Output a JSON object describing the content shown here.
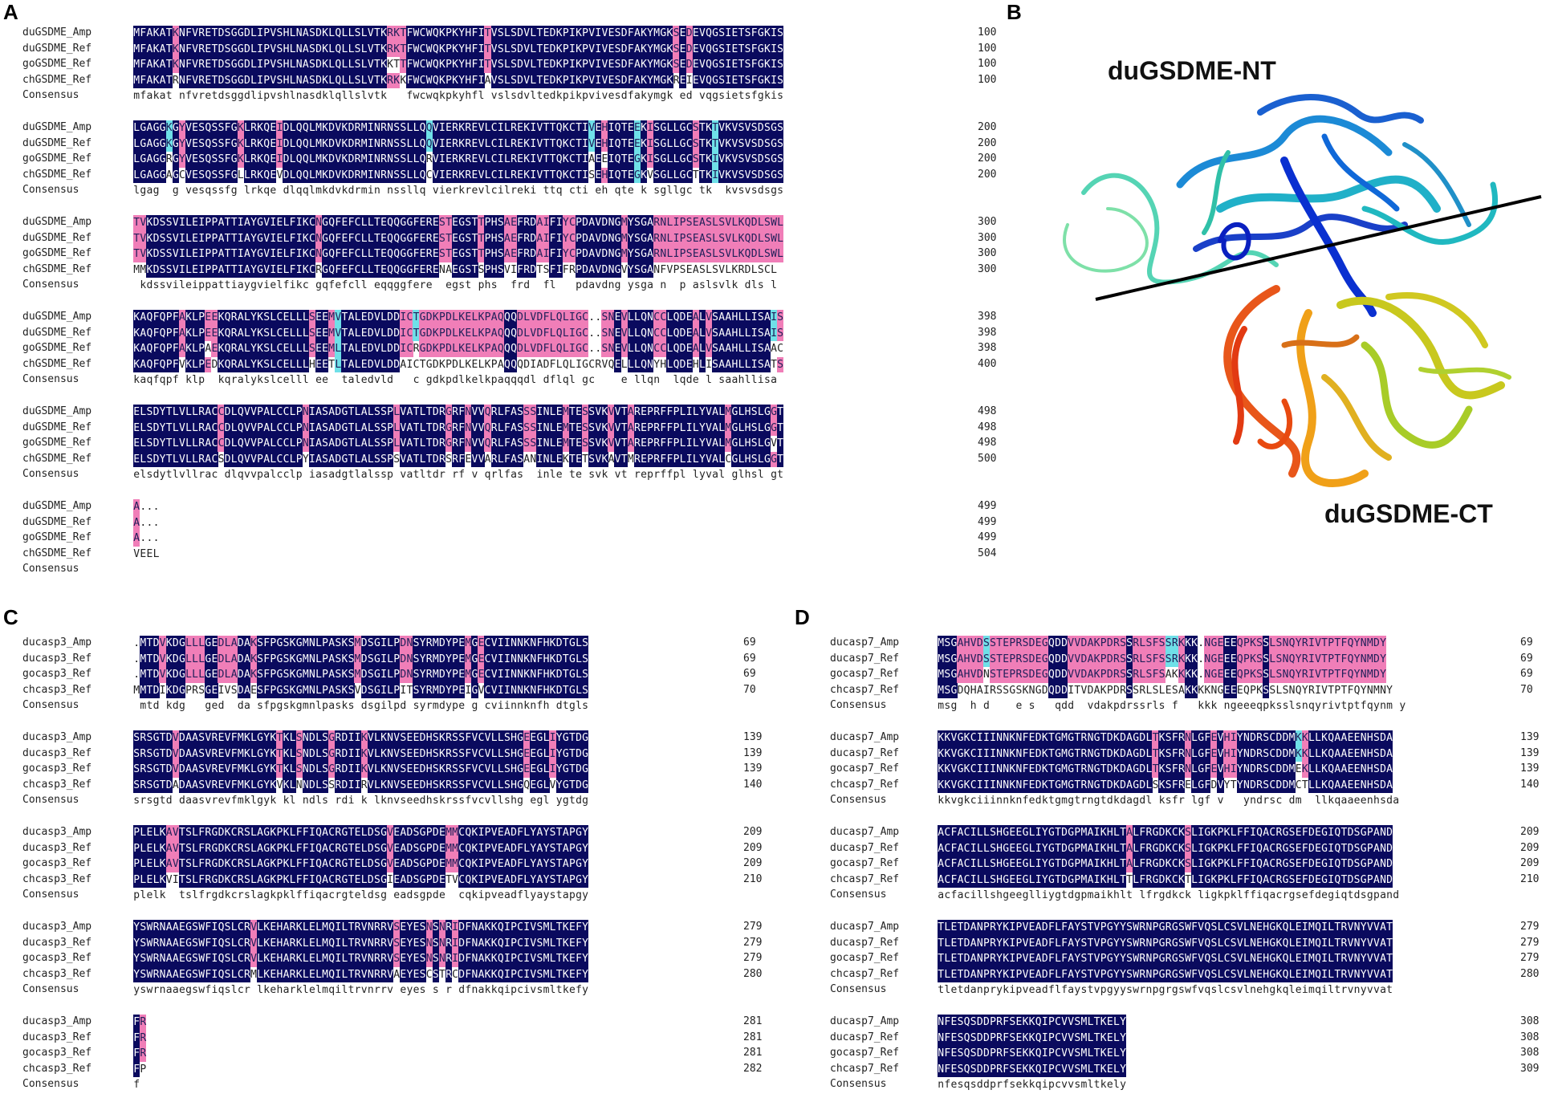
{
  "panels": {
    "A": "A",
    "B": "B",
    "C": "C",
    "D": "D"
  },
  "structure": {
    "nt_label": "duGSDME-NT",
    "ct_label": "duGSDME-CT"
  },
  "alignments": {
    "A": {
      "names": [
        "duGSDME_Amp",
        "duGSDME_Ref",
        "goGSDME_Ref",
        "chGSDME_Ref"
      ],
      "consensus_label": "Consensus",
      "blocks": [
        {
          "seqs": [
            "MFAKATKNFVRETDSGGDLIPVSHLNASDKLQLLSLVTKRKTFWCWQKPKYHFITVSLSDVLTEDKPIKPVIVESDFAKYMGKSEDEVQGSIETSFGKIS",
            "MFAKATKNFVRETDSGGDLIPVSHLNASDKLQLLSLVTKRKTFWCWQKPKYHFITVSLSDVLTEDKPIKPVIVESDFAKYMGKSEDEVQGSIETSFGKIS",
            "MFAKATKNFVRETDSGGDLIPVSHLNASDKLQLLSLVTKKTTFWCWQKPKYHFITVSLSDVLTEDKPIKPVIVESDFAKYMGKSEDEVQGSIETSFGKIS",
            "MFAKATRNFVRETDSGGDLIPVSHLNASDKLQLLSLVTKRKKFWCWQKPKYHFIAVSLSDVLTEDKPIKPVIVESDFAKYMGKREIEVQGSIETSFGKIS"
          ],
          "consensus": "mfakat nfvretdsggdlipvshlnasdklqllslvtk   fwcwqkpkyhfl vslsdvltedkpikpvivesdfakymgk ed vqgsietsfgkis",
          "nums": [
            "100",
            "100",
            "100",
            "100"
          ]
        },
        {
          "seqs": [
            "LGAGGKGYVESQSSFGKLRKQEIDLQQLMKDVKDRMINRNSSLLQQVIERKREVLCILREKIVTTQKCTIVEHIQTEEKISGLLGCSTKTVKVSVSDSGS",
            "LGAGGKGYVESQSSFGKLRKQEIDLQQLMKDVKDRMINRNSSLLQQVIERKREVLCILREKIVTTQKCTIVEHIQTEEKISGLLGCSTKTVKVSVSDSGS",
            "LGAGGRGYVESQSSFGKLRKQEIDLQQLMKDVKDRMINRNSSLLQRVIERKREVLCILREKIVTTQKCTIAEEIQTEGKISGLLGCSTKIVKVSVSDSGS",
            "LGAGGAGCVESQSSFGLLRKQEVDLQQLMKDVKDRMINRNSSLLQCVIERKREVLCILREKIVTTQKCTISEHIQTEGKVSGLLGCTTKIVKVSVSDSGS"
          ],
          "consensus": "lgag  g vesqssfg lrkqe dlqqlmkdvkdrmin nssllq vierkrevlcilreki ttq cti eh qte k sgllgc tk  kvsvsdsgs",
          "nums": [
            "200",
            "200",
            "200",
            "200"
          ]
        },
        {
          "seqs": [
            "TVKDSSVILEIPPATTIAYGVIELFIKCNGQFEFCLLTEQQGGFERESTEGSTTPHSAEFRDAIFIYCPDAVDNGMYSGARNLIPSEASLSVLKQDLSWL",
            "TVKDSSVILEIPPATTIAYGVIELFIKCNGQFEFCLLTEQQGGFERESTEGSTTPHSAEFRDAIFIYCPDAVDNGMYSGARNLIPSEASLSVLKQDLSWL",
            "TVKDSSVILEIPPATTIAYGVIELFIKCNGQFEFCLLTEQQGGFERESTEGSTTPHSAEFRDAIFIYCPDAVDNGMYSGARNLIPSEASLSVLKQDLSWL",
            "MMKDSSVILEIPPATTIAYGVIELFIKCRGQFEFCLLTEQQGGFERENAEGSTSPHSVIFRDTSFIFRPDAVDNGVYSGANFVPSEASLSVLKRDLSCL"
          ],
          "consensus": " kdssvileippattiaygvielfikc gqfefcll eqqggfere  egst phs  frd  fl   pdavdng ysga n  p aslsvlk dls l",
          "nums": [
            "300",
            "300",
            "300",
            "300"
          ]
        },
        {
          "seqs": [
            "KAQFQPFAKLPEEKQRALYKSLCELLLSEEMVTALEDVLDDICTGDKPDLKELKPAQQQDLVDFLQLIGC..SNEVLLQNCCLQDEALVSAAHLLISAIS",
            "KAQFQPFAKLPEEKQRALYKSLCELLLSEEMVTALEDVLDDICTGDKPDLKELKPAQQQDLVDFLQLIGC..SNEVLLQNCCLQDEALVSAAHLLISAIS",
            "KAQFQPFAKLPAEKQRALYKSLCELLLSEEMLTALEDVLDDICRGDKPDLKELKPAQQQDLVDFLQLIGC..SNEVLLQNCCLQDEALVSAAHLLISAAC",
            "KAQFQPFVKLPEDKQRALYKSLCELLLHEETLTALEDVLDDAICTGDKPDLKELKPAQQQDIADFLQLIGCRVQELLLQNYHLQDEHLISAAHLLISATS"
          ],
          "consensus": "kaqfqpf klp  kqralykslcelll ee  taledvld   c gdkpdlkelkpaqqqdl dflql gc    e llqn  lqde l saahllisa  ",
          "nums": [
            "398",
            "398",
            "398",
            "400"
          ]
        },
        {
          "seqs": [
            "ELSDYTLVLLRACCDLQVVPALCCLPNIASADGTLALSSPLVATLTDRGRFNVVQRLFASSSINLEMTESSVKVVTAREPRFFPLILYVALMGLHSLGGT",
            "ELSDYTLVLLRACCDLQVVPALCCLPNIASADGTLALSSPLVATLTDRGRFNVVQRLFASSSINLEMTESSVKVVTAREPRFFPLILYVALMGLHSLGGT",
            "ELSDYTLVLLRACCDLQVVPALCCLPNIASADGTLALSSPLVATLTDRGRFNVVQRLFASSSINLEMTESSVKVVTAREPRFFPLILYVALMGLHSLGVT",
            "ELSDYTLVLLRACSDLQVVPALCCLPYIASADGTLALSSPSVATLTDRSRFEVVARLFASANINLEKTETSVKAVTMREPRFFPLILYVALCGLHSLGGT"
          ],
          "consensus": "elsdytlvllrac dlqvvpalcclp iasadgtlalssp vatltdr rf v qrlfas  inle te svk vt reprffpl lyval glhsl gt",
          "nums": [
            "498",
            "498",
            "498",
            "500"
          ]
        },
        {
          "seqs": [
            "A...",
            "A...",
            "A...",
            "VEEL"
          ],
          "consensus": "    ",
          "nums": [
            "499",
            "499",
            "499",
            "504"
          ]
        }
      ]
    },
    "C": {
      "names": [
        "ducasp3_Amp",
        "ducasp3_Ref",
        "gocasp3_Ref",
        "chcasp3_Ref"
      ],
      "consensus_label": "Consensus",
      "blocks": [
        {
          "seqs": [
            ".MTDVKDGLLLGEDLADAKSFPGSKGMNLPASKSMDSGILPDNSYRMDYPEMGECVIINNKNFHKDTGLS",
            ".MTDVKDGLLLGEDLADAKSFPGSKGMNLPASKSMDSGILPDNSYRMDYPEMGECVIINNKNFHKDTGLS",
            ".MTDVKDGLLLGEDLADAKSFPGSKGMNLPASKSMDSGILPDNSYRMDYPEMGECVIINNKNFHKDTGLS",
            "MMTDIKDGPRSGEIVSDAESFPGSKGMNLPASKSVDSGILPITSYRMDYPEIGVCVIINNKNFHKDTGLS"
          ],
          "consensus": " mtd kdg   ged  da sfpgskgmnlpasks dsgilpd syrmdype g cviinnknfh dtgls",
          "nums": [
            "69",
            "69",
            "69",
            "70"
          ]
        },
        {
          "seqs": [
            "SRSGTDVDAASVREVFMKLGYKTKLSNDLSGRDIIKVLKNVSEEDHSKRSSFVCVLLSHGEEGLIYGTDG",
            "SRSGTDVDAASVREVFMKLGYKTKLSNDLSGRDIIKVLKNVSEEDHSKRSSFVCVLLSHGEEGLIYGTDG",
            "SRSGTDVDAASVREVFMKLGYKTKLSNDLSGRDIIKVLKNVSEEDHSKRSSFVCVLLSHGEEGLIYGTDG",
            "SRSGTDADAASVREVFMKLGYKVKLNNDLSSRDIIRVLKNVSEEDHSKRSSFVCVLLSHGQEGLVYGTDG"
          ],
          "consensus": "srsgtd daasvrevfmklgyk kl ndls rdi k lknvseedhskrssfvcvllshg egl ygtdg",
          "nums": [
            "139",
            "139",
            "139",
            "140"
          ]
        },
        {
          "seqs": [
            "PLELKAVTSLFRGDKCRSLAGKPKLFFIQACRGTELDSGVEADSGPDEMMCQKIPVEADFLYAYSTAPGY",
            "PLELKAVTSLFRGDKCRSLAGKPKLFFIQACRGTELDSGVEADSGPDEMMCQKIPVEADFLYAYSTAPGY",
            "PLELKAVTSLFRGDKCRSLAGKPKLFFIQACRGTELDSGVEADSGPDEMMCQKIPVEADFLYAYSTAPGY",
            "PLELKVITSLFRGDKCRSLAGKPKLFFIQACRGTELDSGIEADSGPDETVCQKIPVEADFLYAYSTAPGY"
          ],
          "consensus": "plelk  tslfrgdkcrslagkpklffiqacrgteldsg eadsgpde  cqkipveadflyaystapgy",
          "nums": [
            "209",
            "209",
            "209",
            "210"
          ]
        },
        {
          "seqs": [
            "YSWRNAAEGSWFIQSLCRVLKEHARKLELMQILTRVNRRVSEYESNSNRIDFNAKKQIPCIVSMLTKEFY",
            "YSWRNAAEGSWFIQSLCRVLKEHARKLELMQILTRVNRRVSEYESNSNRIDFNAKKQIPCIVSMLTKEFY",
            "YSWRNAAEGSWFIQSLCRVLKEHARKLELMQILTRVNRRVSEYESNSNRIDFNAKKQIPCIVSMLTKEFY",
            "YSWRNAAEGSWFIQSLCRMLKEHARKLELMQILTRVNRRVAEYESCSTRCDFNAKKQIPCIVSMLTKEFY"
          ],
          "consensus": "yswrnaaegswfiqslcr lkeharklelmqiltrvnrrv eyes s r dfnakkqipcivsmltkefy",
          "nums": [
            "279",
            "279",
            "279",
            "280"
          ]
        },
        {
          "seqs": [
            "FR",
            "FR",
            "FR",
            "FP"
          ],
          "consensus": "f ",
          "nums": [
            "281",
            "281",
            "281",
            "282"
          ]
        }
      ]
    },
    "D": {
      "names": [
        "ducasp7_Amp",
        "ducasp7_Ref",
        "gocasp7_Ref",
        "chcasp7_Ref"
      ],
      "consensus_label": "Consensus",
      "blocks": [
        {
          "seqs": [
            "MSGAHVDSSTEPRSDEGQDDVVDAKPDRSSRLSFSSRKKK.NGEEEQPKSSLSNQYRIVTPTFQYNMDY",
            "MSGAHVDSSTEPRSDEGQDDVVDAKPDRSSRLSFSSRKKK.NGEEEQPKSSLSNQYRIVTPTFQYNMDY",
            "MSGAHVDNSTEPRSDEGQDDVVDAKPDRSSRLSFSAKKKK.NGEEEQPKSSLSNQYRIVTPTFQYNMDY",
            "MSGDQHAIRSSGSKNGDQDDITVDAKPDRSSRLSLESAKKKKNGEEEQPKSSLSNQYRIVTPTFQYNMNY"
          ],
          "consensus": "msg  h d    e s   qdd  vdakpdrssrls f   kkk ngeeeqpksslsnqyrivtptfqynm y",
          "nums": [
            "69",
            "69",
            "69",
            "70"
          ]
        },
        {
          "seqs": [
            "KKVGKCIIINNKNFEDKTGMGTRNGTDKDAGDLTKSFRNLGFEVHIYNDRSCDDMKKLLKQAAEENHSDA",
            "KKVGKCIIINNKNFEDKTGMGTRNGTDKDAGDLTKSFRNLGFEVHIYNDRSCDDMKKLLKQAAEENHSDA",
            "KKVGKCIIINNKNFEDKTGMGTRNGTDKDAGDLTKSFRNLGFEVHIYNDRSCDDMEKLLKQAAEENHSDA",
            "KKVGKCIIINNKNFEDKTGMGTRNGTDKDAGDLSKSFRELGFDVYTYNDRSCDDMCTLLKQAAEENHSDA"
          ],
          "consensus": "kkvgkciiinnknfedktgmgtrngtdkdagdl ksfr lgf v   yndrsc dm  llkqaaeenhsda",
          "nums": [
            "139",
            "139",
            "139",
            "140"
          ]
        },
        {
          "seqs": [
            "ACFACILLSHGEEGLIYGTDGPMAIKHLTALFRGDKCKSLIGKPKLFFIQACRGSEFDEGIQTDSGPAND",
            "ACFACILLSHGEEGLIYGTDGPMAIKHLTALFRGDKCKSLIGKPKLFFIQACRGSEFDEGIQTDSGPAND",
            "ACFACILLSHGEEGLIYGTDGPMAIKHLTALFRGDKCKSLIGKPKLFFIQACRGSEFDEGIQTDSGPAND",
            "ACFACILLSHGEEGLIYGTDGPMAIKHLTTLFRGDKCKTLIGKPKLFFIQACRGSEFDEGIQTDSGPAND"
          ],
          "consensus": "acfacillshgeeglliygtdgpmaikhlt lfrgdkck ligkpklffiqacrgsefdegiqtdsgpand",
          "nums": [
            "209",
            "209",
            "209",
            "210"
          ]
        },
        {
          "seqs": [
            "TLETDANPRYKIPVEADFLFAYSTVPGYYSWRNPGRGSWFVQSLCSVLNEHGKQLEIMQILTRVNYVVAT",
            "TLETDANPRYKIPVEADFLFAYSTVPGYYSWRNPGRGSWFVQSLCSVLNEHGKQLEIMQILTRVNYVVAT",
            "TLETDANPRYKIPVEADFLFAYSTVPGYYSWRNPGRGSWFVQSLCSVLNEHGKQLEIMQILTRVNYVVAT",
            "TLETDANPRYKIPVEADFLFAYSTVPGYYSWRNPGRGSWFVQSLCSVLNEHGKQLEIMQILTRVNYVVAT"
          ],
          "consensus": "tletdanprykipveadflfaystvpgyyswrnpgrgswfvqslcsvlnehgkqleimqiltrvnyvvat",
          "nums": [
            "279",
            "279",
            "279",
            "280"
          ]
        },
        {
          "seqs": [
            "NFESQSDDPRFSEKKQIPCVVSMLTKELY",
            "NFESQSDDPRFSEKKQIPCVVSMLTKELY",
            "NFESQSDDPRFSEKKQIPCVVSMLTKELY",
            "NFESQSDDPRFSEKKQIPCVVSMLTKELY"
          ],
          "consensus": "nfesqsddprfsekkqipcvvsmltkely",
          "nums": [
            "308",
            "308",
            "308",
            "309"
          ]
        }
      ]
    }
  }
}
